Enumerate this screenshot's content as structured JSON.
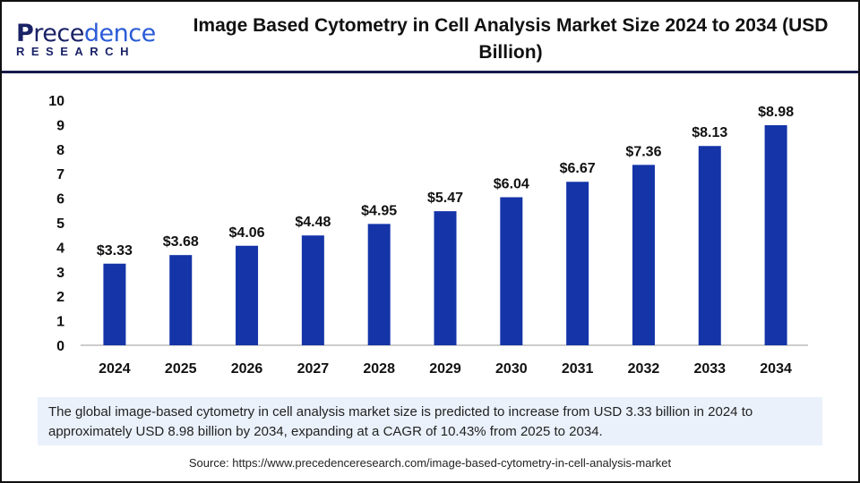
{
  "logo": {
    "line1_first": "P",
    "line1_a": "rece",
    "line1_b": "dence",
    "line2": "RESEARCH"
  },
  "title": "Image Based Cytometry in Cell Analysis Market Size 2024 to 2034 (USD Billion)",
  "chart_data": {
    "type": "bar",
    "title": "Image Based Cytometry in Cell Analysis Market Size 2024 to 2034 (USD Billion)",
    "categories": [
      "2024",
      "2025",
      "2026",
      "2027",
      "2028",
      "2029",
      "2030",
      "2031",
      "2032",
      "2033",
      "2034"
    ],
    "values": [
      3.33,
      3.68,
      4.06,
      4.48,
      4.95,
      5.47,
      6.04,
      6.67,
      7.36,
      8.13,
      8.98
    ],
    "data_labels": [
      "$3.33",
      "$3.68",
      "$4.06",
      "$4.48",
      "$4.95",
      "$5.47",
      "$6.04",
      "$6.67",
      "$7.36",
      "$8.13",
      "$8.98"
    ],
    "yticks": [
      0,
      1,
      2,
      3,
      4,
      5,
      6,
      7,
      8,
      9,
      10
    ],
    "ylim": [
      0,
      10
    ],
    "xlabel": "",
    "ylabel": "",
    "grid": false,
    "bar_color": "#1434a8"
  },
  "caption": "The global image-based cytometry in cell analysis market size is predicted to increase from USD 3.33 billion in 2024 to approximately USD 8.98 billion by 2034, expanding at a CAGR of 10.43% from 2025 to 2034.",
  "source": "Source: https://www.precedenceresearch.com/image-based-cytometry-in-cell-analysis-market"
}
